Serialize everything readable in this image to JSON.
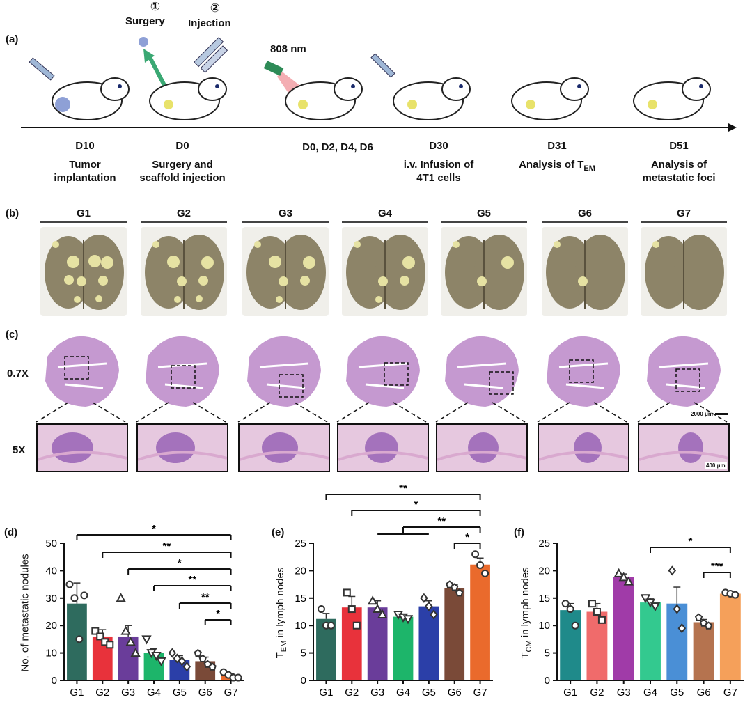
{
  "panel_a": {
    "label": "(a)",
    "step1_number": "①",
    "step1": "Surgery",
    "step2_number": "②",
    "step2": "Injection",
    "laser": "808 nm",
    "timeline": [
      {
        "day": "D10",
        "line1": "Tumor",
        "line2": "implantation"
      },
      {
        "day": "D0",
        "line1": "Surgery and",
        "line2": "scaffold injection"
      },
      {
        "day": "D0, D2, D4, D6",
        "line1": "",
        "line2": ""
      },
      {
        "day": "D30",
        "line1": "i.v. Infusion of",
        "line2": "4T1 cells"
      },
      {
        "day": "D31",
        "line1": "Analysis of T",
        "line1_sub": "EM",
        "line2": ""
      },
      {
        "day": "D51",
        "line1": "Analysis of",
        "line2": "metastatic foci"
      }
    ]
  },
  "panel_b": {
    "label": "(b)",
    "groups": [
      "G1",
      "G2",
      "G3",
      "G4",
      "G5",
      "G6",
      "G7"
    ]
  },
  "panel_c": {
    "label": "(c)",
    "row1": "0.7X",
    "row2": "5X",
    "scale1": "2000 μm",
    "scale2": "400 μm"
  },
  "colors": {
    "G1": "#2e6b5e",
    "G2": "#e8323b",
    "G3": "#6a3d9a",
    "G4": "#1db56a",
    "G5": "#2b3fa8",
    "G6": "#7a4a38",
    "G7": "#ea6a2c",
    "f_G1": "#1f8a8a",
    "f_G2": "#f06b6b",
    "f_G3": "#a03ba8",
    "f_G4": "#33c98f",
    "f_G5": "#4a8fd6",
    "f_G6": "#b5734f",
    "f_G7": "#f5a05a",
    "tissue": "#b77fc4",
    "photo_tissue": "#8d8468",
    "nodule": "#e6e2a3"
  },
  "chart_data": [
    {
      "label": "(d)",
      "type": "bar",
      "categories": [
        "G1",
        "G2",
        "G3",
        "G4",
        "G5",
        "G6",
        "G7"
      ],
      "values": [
        28,
        16,
        16,
        10,
        7.5,
        7,
        2
      ],
      "errors": [
        7.5,
        2.5,
        4,
        1.5,
        1.5,
        1.5,
        0.5
      ],
      "points": [
        [
          35,
          30,
          15,
          31
        ],
        [
          18,
          16,
          14,
          13
        ],
        [
          30,
          18,
          14,
          10
        ],
        [
          15,
          10,
          9,
          7
        ],
        [
          10,
          8,
          7,
          5
        ],
        [
          10,
          8,
          6,
          5
        ],
        [
          3,
          2,
          1,
          1
        ]
      ],
      "markers": [
        "circle",
        "square",
        "triangle",
        "triangle-down",
        "diamond",
        "pentagon",
        "circle"
      ],
      "ylabel": "No. of metastatic nodules",
      "ylim": [
        0,
        50
      ],
      "yticks": [
        "0",
        "10",
        "20",
        "30",
        "40",
        "50"
      ],
      "significance": [
        {
          "from": "G1",
          "to": "G7",
          "text": "*"
        },
        {
          "from": "G2",
          "to": "G7",
          "text": "**"
        },
        {
          "from": "G3",
          "to": "G7",
          "text": "*"
        },
        {
          "from": "G4",
          "to": "G7",
          "text": "**"
        },
        {
          "from": "G5",
          "to": "G7",
          "text": "**"
        },
        {
          "from": "G6",
          "to": "G7",
          "text": "*"
        }
      ]
    },
    {
      "label": "(e)",
      "type": "bar",
      "categories": [
        "G1",
        "G2",
        "G3",
        "G4",
        "G5",
        "G6",
        "G7"
      ],
      "values": [
        11.2,
        13.3,
        13.3,
        11.6,
        13.5,
        16.8,
        21.1
      ],
      "errors": [
        1.0,
        2.0,
        1.2,
        0.5,
        1.0,
        0.6,
        1.2
      ],
      "points": [
        [
          13,
          10,
          10
        ],
        [
          16,
          13,
          10
        ],
        [
          14.5,
          13,
          12
        ],
        [
          12,
          11.5,
          11.2
        ],
        [
          15,
          13.5,
          12
        ],
        [
          17.5,
          17,
          16
        ],
        [
          23,
          21,
          19.5
        ]
      ],
      "markers": [
        "circle",
        "square",
        "triangle",
        "triangle-down",
        "diamond",
        "pentagon",
        "circle"
      ],
      "ylabel": "T",
      "ylabel_sub": "EM",
      "ylabel_rest": " in lymph nodes",
      "ylim": [
        0,
        25
      ],
      "yticks": [
        "0",
        "5",
        "10",
        "15",
        "20",
        "25"
      ],
      "significance": [
        {
          "from": "G1",
          "to": "G7",
          "text": "**"
        },
        {
          "from": "G2",
          "to": "G7",
          "text": "*"
        },
        {
          "from": "G3-G5",
          "to": "G7",
          "text": "**"
        },
        {
          "from": "G6",
          "to": "G7",
          "text": "*"
        }
      ]
    },
    {
      "label": "(f)",
      "type": "bar",
      "categories": [
        "G1",
        "G2",
        "G3",
        "G4",
        "G5",
        "G6",
        "G7"
      ],
      "values": [
        12.8,
        12.5,
        18.8,
        14.2,
        14.0,
        10.6,
        15.8
      ],
      "errors": [
        1.2,
        1.5,
        0.6,
        0.8,
        3.0,
        0.5,
        0.2
      ],
      "points": [
        [
          14,
          13,
          10
        ],
        [
          14,
          12.5,
          11
        ],
        [
          19.5,
          18.8,
          18
        ],
        [
          15,
          14.2,
          13.5
        ],
        [
          20,
          13,
          9.5
        ],
        [
          11.5,
          10.5,
          10
        ],
        [
          16,
          15.8,
          15.6
        ]
      ],
      "markers": [
        "circle",
        "square",
        "triangle",
        "triangle-down",
        "diamond",
        "pentagon",
        "circle"
      ],
      "ylabel": "T",
      "ylabel_sub": "CM",
      "ylabel_rest": " in lymph nodes",
      "ylim": [
        0,
        25
      ],
      "yticks": [
        "0",
        "5",
        "10",
        "15",
        "20",
        "25"
      ],
      "significance": [
        {
          "from": "G4",
          "to": "G7",
          "text": "*"
        },
        {
          "from": "G6",
          "to": "G7",
          "text": "***"
        }
      ]
    }
  ]
}
